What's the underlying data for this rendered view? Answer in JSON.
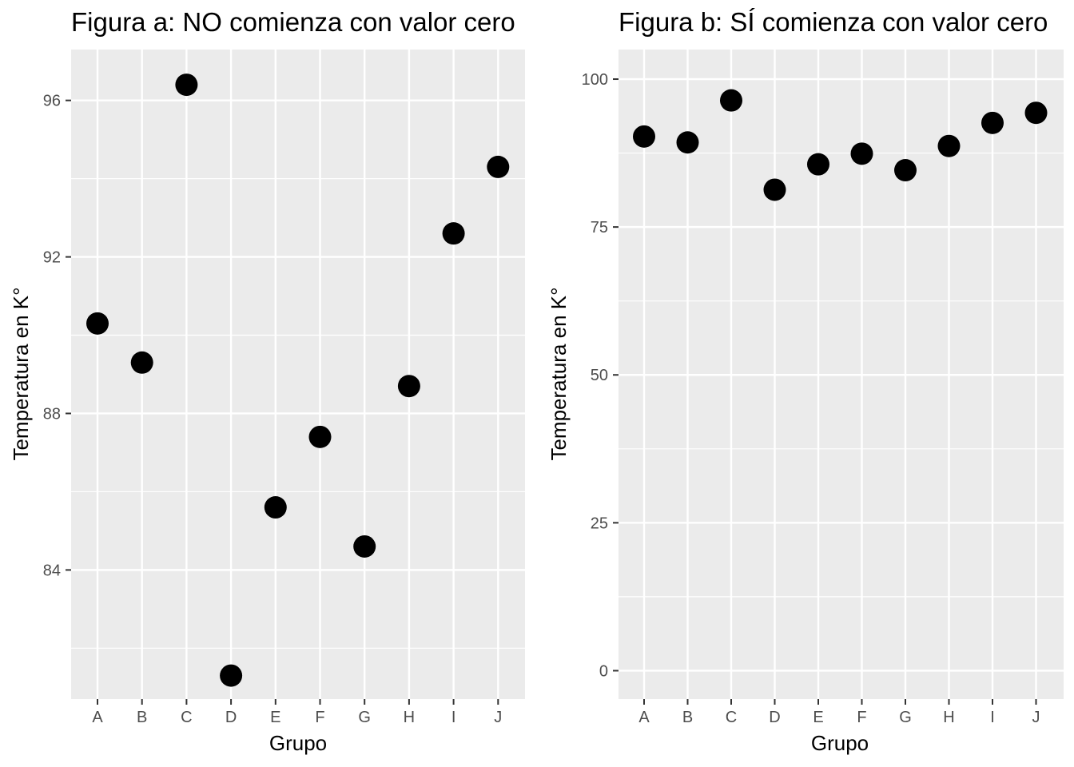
{
  "chart_data": [
    {
      "type": "scatter",
      "title": "Figura a: NO comienza con valor cero",
      "xlabel": "Grupo",
      "ylabel": "Temperatura en K°",
      "categories": [
        "A",
        "B",
        "C",
        "D",
        "E",
        "F",
        "G",
        "H",
        "I",
        "J"
      ],
      "values": [
        90.3,
        89.3,
        96.4,
        81.3,
        85.6,
        87.4,
        84.6,
        88.7,
        92.6,
        94.3
      ],
      "yticks": [
        84,
        88,
        92,
        96
      ],
      "ylim": [
        80.7,
        97.3
      ],
      "grid": true
    },
    {
      "type": "scatter",
      "title": "Figura b: SÍ comienza con valor cero",
      "xlabel": "Grupo",
      "ylabel": "Temperatura en K°",
      "categories": [
        "A",
        "B",
        "C",
        "D",
        "E",
        "F",
        "G",
        "H",
        "I",
        "J"
      ],
      "values": [
        90.3,
        89.3,
        96.4,
        81.3,
        85.6,
        87.4,
        84.6,
        88.7,
        92.6,
        94.3
      ],
      "yticks": [
        0,
        25,
        50,
        75,
        100
      ],
      "ylim": [
        -4.8,
        105
      ],
      "grid": true
    }
  ]
}
